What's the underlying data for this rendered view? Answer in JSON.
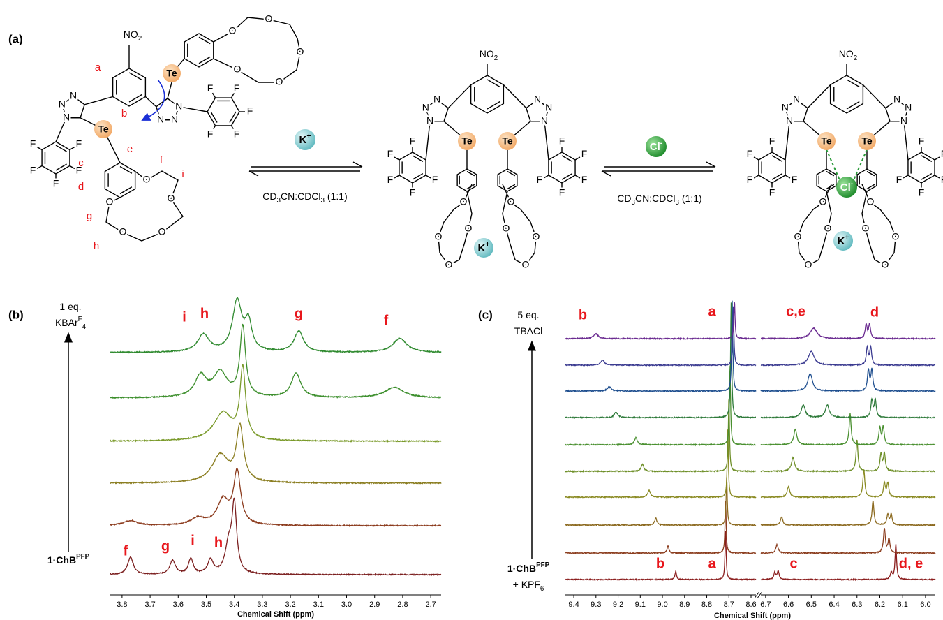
{
  "panel_a": {
    "label": "(a)",
    "atoms": {
      "tellurium": "Te",
      "nitrogen": "N",
      "fluorine": "F",
      "oxygen": "O"
    },
    "nitro": [
      {
        "text": "NO"
      },
      {
        "text": "2",
        "sub": true
      }
    ],
    "proton_labels": [
      "a",
      "b",
      "c",
      "d",
      "e",
      "f",
      "i",
      "g",
      "h"
    ],
    "potassium": [
      {
        "text": "K"
      },
      {
        "text": "+",
        "sup": true
      }
    ],
    "chloride": [
      {
        "text": "Cl"
      },
      {
        "text": "-",
        "sup": true
      }
    ],
    "solvent": [
      {
        "text": "CD"
      },
      {
        "text": "3",
        "sub": true
      },
      {
        "text": "CN:CDCl"
      },
      {
        "text": "3",
        "sub": true
      },
      {
        "text": " (1:1)"
      }
    ]
  },
  "chart_data": [
    {
      "type": "line",
      "label": "(b)",
      "arrow_top": {
        "lines": [
          [
            {
              "text": "1 eq."
            }
          ],
          [
            {
              "text": "KBAr"
            },
            {
              "text": "F",
              "sup": true
            },
            {
              "text": "4",
              "sub": true
            }
          ]
        ]
      },
      "arrow_bottom": {
        "lines": [
          [
            {
              "text": "1·ChB"
            },
            {
              "text": "PFP",
              "sup": true
            }
          ]
        ]
      },
      "x_label": "Chemical Shift (ppm)",
      "x_segments": [
        {
          "xlim": [
            3.842,
            2.663
          ],
          "xticks": [
            3.8,
            3.7,
            3.6,
            3.5,
            3.4,
            3.3,
            3.2,
            3.1,
            {
              "value": 3,
              "label": "3.0"
            },
            2.9,
            2.8,
            2.7
          ]
        }
      ],
      "peak_labels_top": [
        "i",
        "h",
        "g",
        "f"
      ],
      "peak_labels_bottom": [
        "f",
        "g",
        "i",
        "h"
      ],
      "series": [
        {
          "color": "#7b1f1f",
          "peaks": [
            [
              3.77,
              25,
              0.012
            ],
            [
              3.62,
              20,
              0.012
            ],
            [
              3.555,
              22,
              0.01
            ],
            [
              3.485,
              20,
              0.012
            ],
            [
              3.42,
              40,
              0.015
            ],
            [
              3.4,
              95,
              0.01
            ]
          ]
        },
        {
          "color": "#8b3a1c",
          "peaks": [
            [
              3.77,
              7,
              0.03
            ],
            [
              3.53,
              10,
              0.03
            ],
            [
              3.44,
              35,
              0.025
            ],
            [
              3.39,
              75,
              0.015
            ]
          ]
        },
        {
          "color": "#8a7d20",
          "peaks": [
            [
              3.45,
              40,
              0.035
            ],
            [
              3.38,
              78,
              0.015
            ]
          ]
        },
        {
          "color": "#7a9a2a",
          "peaks": [
            [
              3.44,
              40,
              0.04
            ],
            [
              3.37,
              100,
              0.012
            ]
          ]
        },
        {
          "color": "#3d8f2d",
          "peaks": [
            [
              3.52,
              30,
              0.025
            ],
            [
              3.45,
              35,
              0.03
            ],
            [
              3.37,
              100,
              0.012
            ],
            [
              3.18,
              35,
              0.02
            ],
            [
              2.83,
              15,
              0.04
            ]
          ]
        },
        {
          "color": "#2f8a2f",
          "peaks": [
            [
              3.51,
              25,
              0.025
            ],
            [
              3.39,
              72,
              0.02
            ],
            [
              3.35,
              40,
              0.015
            ],
            [
              3.17,
              30,
              0.02
            ],
            [
              2.81,
              20,
              0.03
            ]
          ]
        }
      ]
    },
    {
      "type": "line",
      "label": "(c)",
      "arrow_top": {
        "lines": [
          [
            {
              "text": "5 eq."
            }
          ],
          [
            {
              "text": "TBACl"
            }
          ]
        ]
      },
      "arrow_bottom": {
        "lines": [
          [
            {
              "text": "1·ChB"
            },
            {
              "text": "PFP",
              "sup": true
            }
          ],
          [
            {
              "text": "+ KPF"
            },
            {
              "text": "6",
              "sub": true
            }
          ]
        ]
      },
      "x_label": "Chemical Shift (ppm)",
      "x_segments": [
        {
          "xlim": [
            9.438,
            8.578
          ],
          "xticks": [
            9.4,
            9.3,
            9.2,
            9.1,
            {
              "value": 9,
              "label": "9.0"
            },
            8.9,
            8.8,
            8.7,
            8.6
          ]
        },
        {
          "xlim": [
            6.721,
            5.957
          ],
          "xticks": [
            6.7,
            6.6,
            6.5,
            6.4,
            6.3,
            6.2,
            6.1,
            {
              "value": 6,
              "label": "6.0"
            }
          ]
        }
      ],
      "peak_labels_top": [
        "b",
        "a",
        "c,e",
        "d"
      ],
      "peak_labels_bottom": [
        "b",
        "a",
        "c",
        "d, e"
      ],
      "series": [
        {
          "color": "#8b1e1e",
          "peaks": [
            [
              8.94,
              12,
              0.004
            ],
            [
              8.715,
              70,
              0.003
            ],
            [
              6.66,
              10,
              0.005
            ],
            [
              6.645,
              12,
              0.005
            ],
            [
              6.15,
              10,
              0.005
            ],
            [
              6.13,
              50,
              0.004
            ]
          ]
        },
        {
          "color": "#8b3d1e",
          "peaks": [
            [
              8.975,
              10,
              0.005
            ],
            [
              8.715,
              75,
              0.003
            ],
            [
              6.65,
              12,
              0.006
            ],
            [
              6.18,
              35,
              0.005
            ],
            [
              6.16,
              20,
              0.005
            ]
          ]
        },
        {
          "color": "#8c6a20",
          "peaks": [
            [
              9.03,
              10,
              0.006
            ],
            [
              8.71,
              70,
              0.003
            ],
            [
              6.63,
              12,
              0.006
            ],
            [
              6.23,
              35,
              0.005
            ],
            [
              6.165,
              15,
              0.005
            ],
            [
              6.15,
              15,
              0.005
            ]
          ]
        },
        {
          "color": "#8a8a22",
          "peaks": [
            [
              9.06,
              10,
              0.007
            ],
            [
              8.705,
              100,
              0.003
            ],
            [
              6.6,
              15,
              0.007
            ],
            [
              6.27,
              40,
              0.005
            ],
            [
              6.18,
              20,
              0.005
            ],
            [
              6.165,
              20,
              0.005
            ]
          ]
        },
        {
          "color": "#6e8f28",
          "peaks": [
            [
              9.09,
              10,
              0.007
            ],
            [
              8.7,
              110,
              0.003
            ],
            [
              6.58,
              20,
              0.008
            ],
            [
              6.3,
              45,
              0.005
            ],
            [
              6.195,
              25,
              0.005
            ],
            [
              6.18,
              25,
              0.005
            ]
          ]
        },
        {
          "color": "#4a9030",
          "peaks": [
            [
              9.12,
              10,
              0.008
            ],
            [
              8.695,
              115,
              0.003
            ],
            [
              6.57,
              22,
              0.008
            ],
            [
              6.33,
              45,
              0.005
            ],
            [
              6.2,
              25,
              0.005
            ],
            [
              6.185,
              25,
              0.005
            ]
          ]
        },
        {
          "color": "#2e7a3a",
          "peaks": [
            [
              9.21,
              8,
              0.009
            ],
            [
              8.69,
              165,
              0.003
            ],
            [
              6.535,
              18,
              0.01
            ],
            [
              6.43,
              18,
              0.01
            ],
            [
              6.235,
              25,
              0.005
            ],
            [
              6.22,
              25,
              0.005
            ]
          ]
        },
        {
          "color": "#1f4f8f",
          "peaks": [
            [
              9.24,
              6,
              0.01
            ],
            [
              8.685,
              130,
              0.003
            ],
            [
              6.505,
              25,
              0.012
            ],
            [
              6.25,
              30,
              0.005
            ],
            [
              6.235,
              30,
              0.005
            ]
          ]
        },
        {
          "color": "#3a3a90",
          "peaks": [
            [
              9.27,
              7,
              0.01
            ],
            [
              8.68,
              85,
              0.003
            ],
            [
              6.5,
              20,
              0.015
            ],
            [
              6.255,
              25,
              0.005
            ],
            [
              6.24,
              25,
              0.005
            ]
          ]
        },
        {
          "color": "#6a2a90",
          "peaks": [
            [
              9.3,
              7,
              0.012
            ],
            [
              8.675,
              55,
              0.003
            ],
            [
              6.49,
              15,
              0.018
            ],
            [
              6.26,
              20,
              0.005
            ],
            [
              6.245,
              20,
              0.005
            ]
          ]
        }
      ]
    }
  ]
}
